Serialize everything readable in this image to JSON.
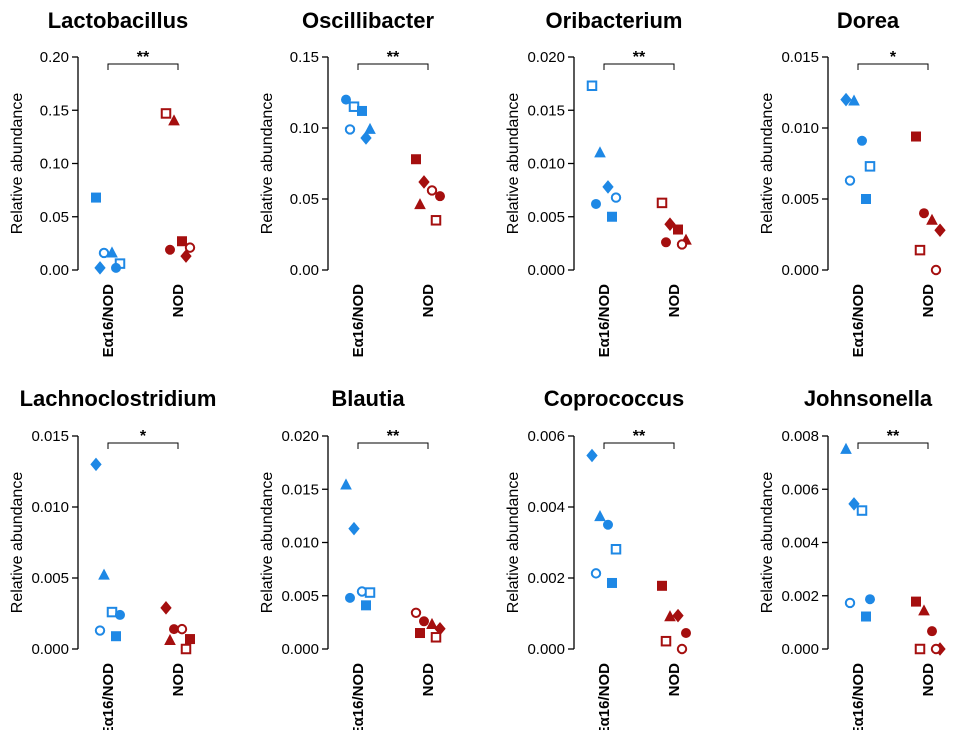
{
  "colors": {
    "Eα16/NOD": "#1e88e5",
    "NOD": "#a50f0f"
  },
  "chart_data": [
    {
      "type": "scatter",
      "title": "Lactobacillus",
      "ylabel": "Relative abundance",
      "categories": [
        "Eα16/NOD",
        "NOD"
      ],
      "yticks": [
        "0.00",
        "0.05",
        "0.10",
        "0.15",
        "0.20"
      ],
      "ylim": [
        0,
        0.2
      ],
      "significance": "**",
      "series": [
        {
          "points": [
            {
              "marker": "square-filled",
              "y": 0.068
            },
            {
              "marker": "circle-open",
              "y": 0.016
            },
            {
              "marker": "triangle-filled",
              "y": 0.016
            },
            {
              "marker": "square-open",
              "y": 0.006
            },
            {
              "marker": "diamond-filled",
              "y": 0.002
            },
            {
              "marker": "circle-filled",
              "y": 0.002
            }
          ]
        },
        {
          "points": [
            {
              "marker": "square-open",
              "y": 0.147
            },
            {
              "marker": "triangle-filled",
              "y": 0.14
            },
            {
              "marker": "square-filled",
              "y": 0.027
            },
            {
              "marker": "circle-open",
              "y": 0.021
            },
            {
              "marker": "circle-filled",
              "y": 0.019
            },
            {
              "marker": "diamond-filled",
              "y": 0.013
            }
          ]
        }
      ]
    },
    {
      "type": "scatter",
      "title": "Oscillibacter",
      "ylabel": "Relative abundance",
      "categories": [
        "Eα16/NOD",
        "NOD"
      ],
      "yticks": [
        "0.00",
        "0.05",
        "0.10",
        "0.15"
      ],
      "ylim": [
        0,
        0.15
      ],
      "significance": "**",
      "series": [
        {
          "points": [
            {
              "marker": "circle-filled",
              "y": 0.12
            },
            {
              "marker": "square-open",
              "y": 0.115
            },
            {
              "marker": "square-filled",
              "y": 0.112
            },
            {
              "marker": "triangle-filled",
              "y": 0.099
            },
            {
              "marker": "circle-open",
              "y": 0.099
            },
            {
              "marker": "diamond-filled",
              "y": 0.093
            }
          ]
        },
        {
          "points": [
            {
              "marker": "square-filled",
              "y": 0.078
            },
            {
              "marker": "diamond-filled",
              "y": 0.062
            },
            {
              "marker": "circle-open",
              "y": 0.056
            },
            {
              "marker": "circle-filled",
              "y": 0.052
            },
            {
              "marker": "triangle-filled",
              "y": 0.046
            },
            {
              "marker": "square-open",
              "y": 0.035
            }
          ]
        }
      ]
    },
    {
      "type": "scatter",
      "title": "Oribacterium",
      "ylabel": "Relative abundance",
      "categories": [
        "Eα16/NOD",
        "NOD"
      ],
      "yticks": [
        "0.000",
        "0.005",
        "0.010",
        "0.015",
        "0.020"
      ],
      "ylim": [
        0,
        0.02
      ],
      "significance": "**",
      "series": [
        {
          "points": [
            {
              "marker": "square-open",
              "y": 0.0173
            },
            {
              "marker": "triangle-filled",
              "y": 0.011
            },
            {
              "marker": "diamond-filled",
              "y": 0.0078
            },
            {
              "marker": "circle-open",
              "y": 0.0068
            },
            {
              "marker": "circle-filled",
              "y": 0.0062
            },
            {
              "marker": "square-filled",
              "y": 0.005
            }
          ]
        },
        {
          "points": [
            {
              "marker": "square-open",
              "y": 0.0063
            },
            {
              "marker": "diamond-filled",
              "y": 0.0043
            },
            {
              "marker": "square-filled",
              "y": 0.0038
            },
            {
              "marker": "triangle-filled",
              "y": 0.0028
            },
            {
              "marker": "circle-filled",
              "y": 0.0026
            },
            {
              "marker": "circle-open",
              "y": 0.0024
            }
          ]
        }
      ]
    },
    {
      "type": "scatter",
      "title": "Dorea",
      "ylabel": "Relative abundance",
      "categories": [
        "Eα16/NOD",
        "NOD"
      ],
      "yticks": [
        "0.000",
        "0.005",
        "0.010",
        "0.015"
      ],
      "ylim": [
        0,
        0.015
      ],
      "significance": "*",
      "series": [
        {
          "points": [
            {
              "marker": "diamond-filled",
              "y": 0.012
            },
            {
              "marker": "triangle-filled",
              "y": 0.0119
            },
            {
              "marker": "circle-filled",
              "y": 0.0091
            },
            {
              "marker": "square-open",
              "y": 0.0073
            },
            {
              "marker": "circle-open",
              "y": 0.0063
            },
            {
              "marker": "square-filled",
              "y": 0.005
            }
          ]
        },
        {
          "points": [
            {
              "marker": "square-filled",
              "y": 0.0094
            },
            {
              "marker": "circle-filled",
              "y": 0.004
            },
            {
              "marker": "triangle-filled",
              "y": 0.0035
            },
            {
              "marker": "diamond-filled",
              "y": 0.0028
            },
            {
              "marker": "square-open",
              "y": 0.0014
            },
            {
              "marker": "circle-open",
              "y": 0.0
            }
          ]
        }
      ]
    },
    {
      "type": "scatter",
      "title": "Lachnoclostridium",
      "ylabel": "Relative abundance",
      "categories": [
        "Eα16/NOD",
        "NOD"
      ],
      "yticks": [
        "0.000",
        "0.005",
        "0.010",
        "0.015"
      ],
      "ylim": [
        0,
        0.015
      ],
      "significance": "*",
      "series": [
        {
          "points": [
            {
              "marker": "diamond-filled",
              "y": 0.013
            },
            {
              "marker": "triangle-filled",
              "y": 0.0052
            },
            {
              "marker": "square-open",
              "y": 0.0026
            },
            {
              "marker": "circle-filled",
              "y": 0.0024
            },
            {
              "marker": "circle-open",
              "y": 0.0013
            },
            {
              "marker": "square-filled",
              "y": 0.0009
            }
          ]
        },
        {
          "points": [
            {
              "marker": "diamond-filled",
              "y": 0.0029
            },
            {
              "marker": "circle-filled",
              "y": 0.0014
            },
            {
              "marker": "circle-open",
              "y": 0.0014
            },
            {
              "marker": "square-filled",
              "y": 0.0007
            },
            {
              "marker": "triangle-filled",
              "y": 0.0006
            },
            {
              "marker": "square-open",
              "y": 0.0
            }
          ]
        }
      ]
    },
    {
      "type": "scatter",
      "title": "Blautia",
      "ylabel": "Relative abundance",
      "categories": [
        "Eα16/NOD",
        "NOD"
      ],
      "yticks": [
        "0.000",
        "0.005",
        "0.010",
        "0.015",
        "0.020"
      ],
      "ylim": [
        0,
        0.02
      ],
      "significance": "**",
      "series": [
        {
          "points": [
            {
              "marker": "triangle-filled",
              "y": 0.0154
            },
            {
              "marker": "diamond-filled",
              "y": 0.0113
            },
            {
              "marker": "circle-open",
              "y": 0.0054
            },
            {
              "marker": "square-open",
              "y": 0.0053
            },
            {
              "marker": "circle-filled",
              "y": 0.0048
            },
            {
              "marker": "square-filled",
              "y": 0.0041
            }
          ]
        },
        {
          "points": [
            {
              "marker": "circle-open",
              "y": 0.0034
            },
            {
              "marker": "circle-filled",
              "y": 0.0026
            },
            {
              "marker": "triangle-filled",
              "y": 0.0023
            },
            {
              "marker": "diamond-filled",
              "y": 0.0019
            },
            {
              "marker": "square-filled",
              "y": 0.0015
            },
            {
              "marker": "square-open",
              "y": 0.0011
            }
          ]
        }
      ]
    },
    {
      "type": "scatter",
      "title": "Coprococcus",
      "ylabel": "Relative abundance",
      "categories": [
        "Eα16/NOD",
        "NOD"
      ],
      "yticks": [
        "0.000",
        "0.002",
        "0.004",
        "0.006"
      ],
      "ylim": [
        0,
        0.006
      ],
      "significance": "**",
      "series": [
        {
          "points": [
            {
              "marker": "diamond-filled",
              "y": 0.00545
            },
            {
              "marker": "triangle-filled",
              "y": 0.00373
            },
            {
              "marker": "circle-filled",
              "y": 0.0035
            },
            {
              "marker": "square-open",
              "y": 0.00281
            },
            {
              "marker": "circle-open",
              "y": 0.00213
            },
            {
              "marker": "square-filled",
              "y": 0.00186
            }
          ]
        },
        {
          "points": [
            {
              "marker": "square-filled",
              "y": 0.00178
            },
            {
              "marker": "triangle-filled",
              "y": 0.00091
            },
            {
              "marker": "diamond-filled",
              "y": 0.00094
            },
            {
              "marker": "circle-filled",
              "y": 0.00045
            },
            {
              "marker": "square-open",
              "y": 0.00022
            },
            {
              "marker": "circle-open",
              "y": 0.0
            }
          ]
        }
      ]
    },
    {
      "type": "scatter",
      "title": "Johnsonella",
      "ylabel": "Relative abundance",
      "categories": [
        "Eα16/NOD",
        "NOD"
      ],
      "yticks": [
        "0.000",
        "0.002",
        "0.004",
        "0.006",
        "0.008"
      ],
      "ylim": [
        0,
        0.008
      ],
      "significance": "**",
      "series": [
        {
          "points": [
            {
              "marker": "triangle-filled",
              "y": 0.0075
            },
            {
              "marker": "diamond-filled",
              "y": 0.00545
            },
            {
              "marker": "square-open",
              "y": 0.0052
            },
            {
              "marker": "circle-filled",
              "y": 0.00187
            },
            {
              "marker": "circle-open",
              "y": 0.00173
            },
            {
              "marker": "square-filled",
              "y": 0.00122
            }
          ]
        },
        {
          "points": [
            {
              "marker": "square-filled",
              "y": 0.00178
            },
            {
              "marker": "triangle-filled",
              "y": 0.00143
            },
            {
              "marker": "circle-filled",
              "y": 0.00067
            },
            {
              "marker": "diamond-filled",
              "y": 0.0
            },
            {
              "marker": "square-open",
              "y": 0.0
            },
            {
              "marker": "circle-open",
              "y": 0.0
            }
          ]
        }
      ]
    }
  ]
}
